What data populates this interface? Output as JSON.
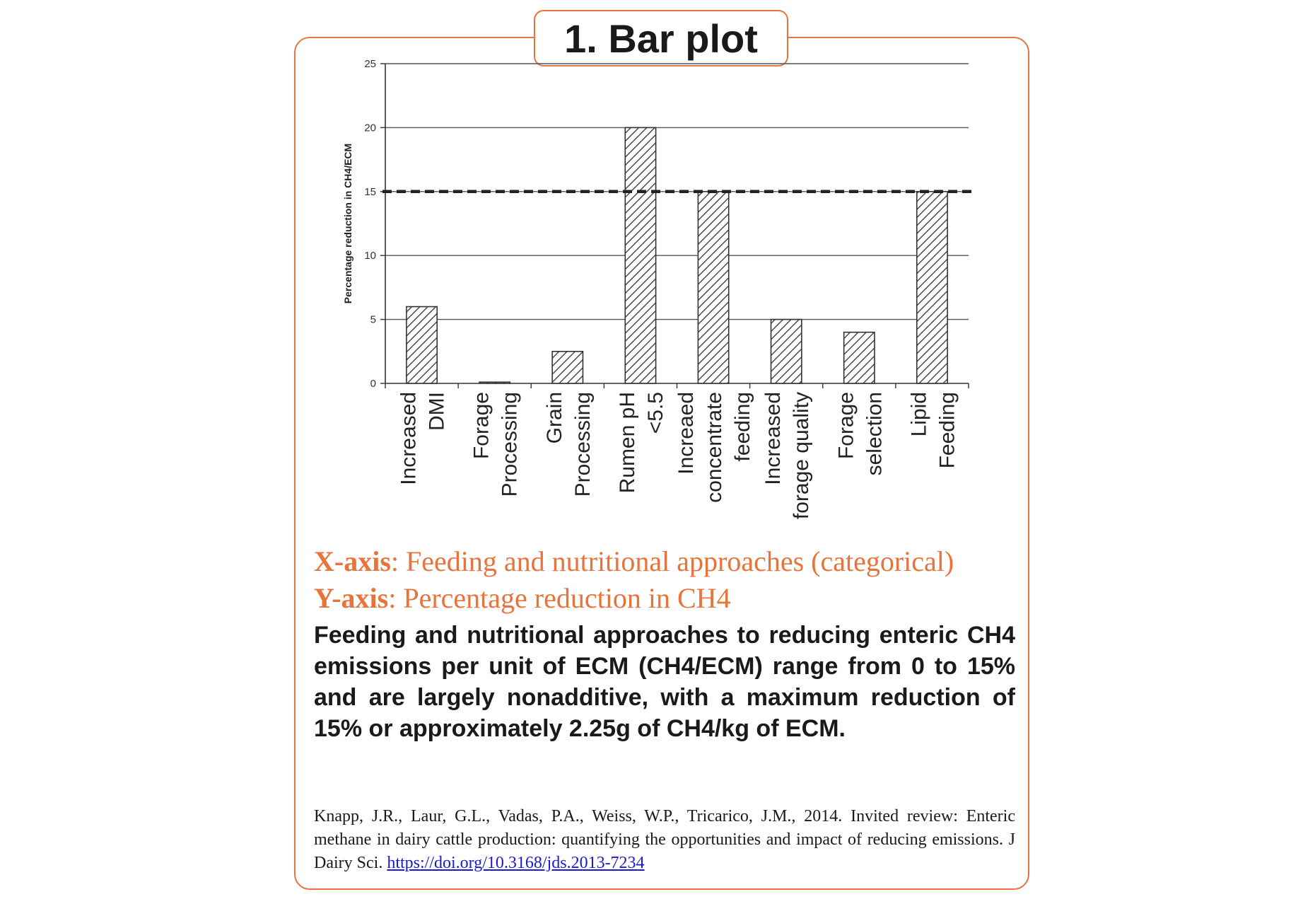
{
  "panel": {
    "title": "1. Bar plot",
    "x_axis_label": "X-axis",
    "x_axis_text": ": Feeding and nutritional approaches (categorical)",
    "y_axis_label": "Y-axis",
    "y_axis_text": ": Percentage reduction in CH4",
    "summary": "Feeding and nutritional approaches to reducing enteric CH4 emissions per unit of ECM (CH4/ECM) range from 0 to 15% and are largely nonadditive, with a maximum reduction of 15% or approximately 2.25g of CH4/kg of ECM.",
    "citation_text": "Knapp, J.R., Laur, G.L., Vadas, P.A., Weiss, W.P., Tricarico, J.M., 2014. Invited review: Enteric methane in dairy cattle production: quantifying the opportunities and impact of reducing emissions. J Dairy Sci. ",
    "citation_link": "https://doi.org/10.3168/jds.2013-7234"
  },
  "colors": {
    "accent": "#e8743b",
    "text": "#1a1a1a",
    "link": "#1a1ad6"
  },
  "chart_data": {
    "type": "bar",
    "ylabel": "Percentage reduction in CH4/ECM",
    "ylim": [
      0,
      25
    ],
    "yticks": [
      0,
      5,
      10,
      15,
      20,
      25
    ],
    "grid": true,
    "bar_fill": "diagonal-hatch",
    "reference_line": {
      "y": 15,
      "style": "dashed"
    },
    "categories": [
      [
        "Increased",
        "DMI"
      ],
      [
        "Forage",
        "Processing"
      ],
      [
        "Grain",
        "Processing"
      ],
      [
        "Rumen pH",
        "<5.5"
      ],
      [
        "Increaed",
        "concentrate",
        "feeding"
      ],
      [
        "Increased",
        "forage quality"
      ],
      [
        "Forage",
        "selection"
      ],
      [
        "Lipid",
        "Feeding"
      ]
    ],
    "values": [
      6,
      0.1,
      2.5,
      20,
      15,
      5,
      4,
      15
    ]
  }
}
